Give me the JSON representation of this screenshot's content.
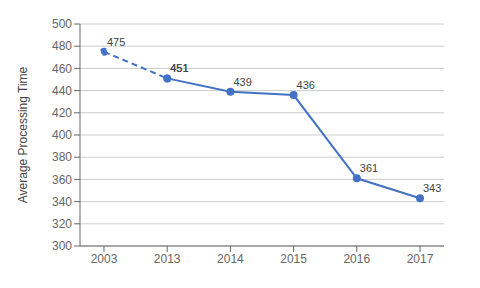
{
  "chart_data": {
    "type": "line",
    "y_label": "Average Processing Time",
    "categories": [
      "2003",
      "2013",
      "2014",
      "2015",
      "2016",
      "2017"
    ],
    "series": [
      {
        "color": "#4472C4",
        "line_style": "dashed",
        "marker": "circle",
        "values": [
          475,
          451,
          null,
          null,
          null,
          null
        ]
      },
      {
        "color": "#4472C4",
        "line_style": "solid",
        "marker": "circle",
        "values": [
          null,
          451,
          439,
          436,
          361,
          343
        ]
      }
    ],
    "ylim": [
      300,
      500
    ],
    "yticks": [
      300,
      320,
      340,
      360,
      380,
      400,
      420,
      440,
      460,
      480,
      500
    ],
    "grid": true,
    "data_labels": true
  }
}
